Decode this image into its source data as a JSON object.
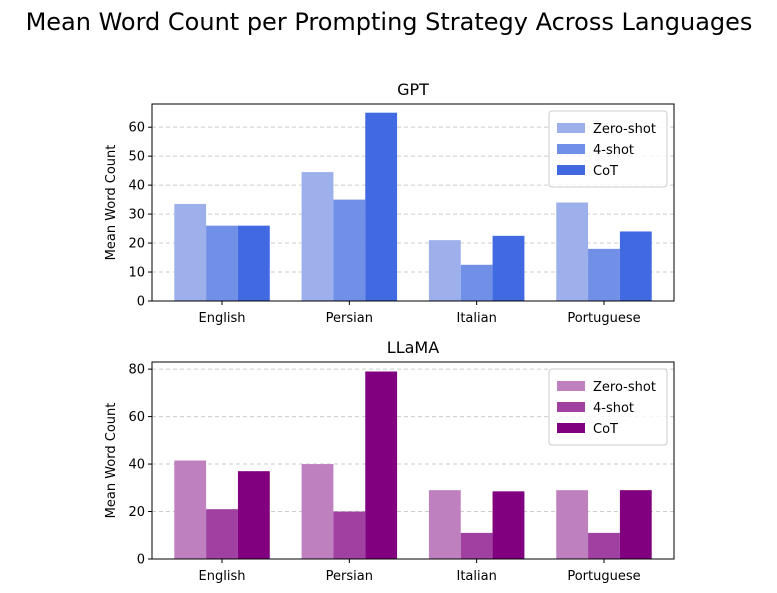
{
  "figure": {
    "suptitle": "Mean Word Count per Prompting Strategy Across Languages"
  },
  "chart_data": [
    {
      "type": "bar",
      "title": "GPT",
      "xlabel": "",
      "ylabel": "Mean Word Count",
      "categories": [
        "English",
        "Persian",
        "Italian",
        "Portuguese"
      ],
      "series": [
        {
          "name": "Zero-shot",
          "values": [
            33.5,
            44.5,
            21.0,
            34.0
          ],
          "color": "#9db0ec"
        },
        {
          "name": "4-shot",
          "values": [
            26.0,
            35.0,
            12.5,
            18.0
          ],
          "color": "#7090e8"
        },
        {
          "name": "CoT",
          "values": [
            26.0,
            65.0,
            22.5,
            24.0
          ],
          "color": "#4169e1"
        }
      ],
      "ylim": [
        0,
        68
      ],
      "yticks": [
        0,
        10,
        20,
        30,
        40,
        50,
        60
      ],
      "grid": true,
      "legend_position": "top-right"
    },
    {
      "type": "bar",
      "title": "LLaMA",
      "xlabel": "",
      "ylabel": "Mean Word Count",
      "categories": [
        "English",
        "Persian",
        "Italian",
        "Portuguese"
      ],
      "series": [
        {
          "name": "Zero-shot",
          "values": [
            41.5,
            40.0,
            29.0,
            29.0
          ],
          "color": "#bf80bf"
        },
        {
          "name": "4-shot",
          "values": [
            21.0,
            20.0,
            11.0,
            11.0
          ],
          "color": "#a040a0"
        },
        {
          "name": "CoT",
          "values": [
            37.0,
            79.0,
            28.5,
            29.0
          ],
          "color": "#800080"
        }
      ],
      "ylim": [
        0,
        83
      ],
      "yticks": [
        0,
        20,
        40,
        60,
        80
      ],
      "grid": true,
      "legend_position": "top-right"
    }
  ]
}
